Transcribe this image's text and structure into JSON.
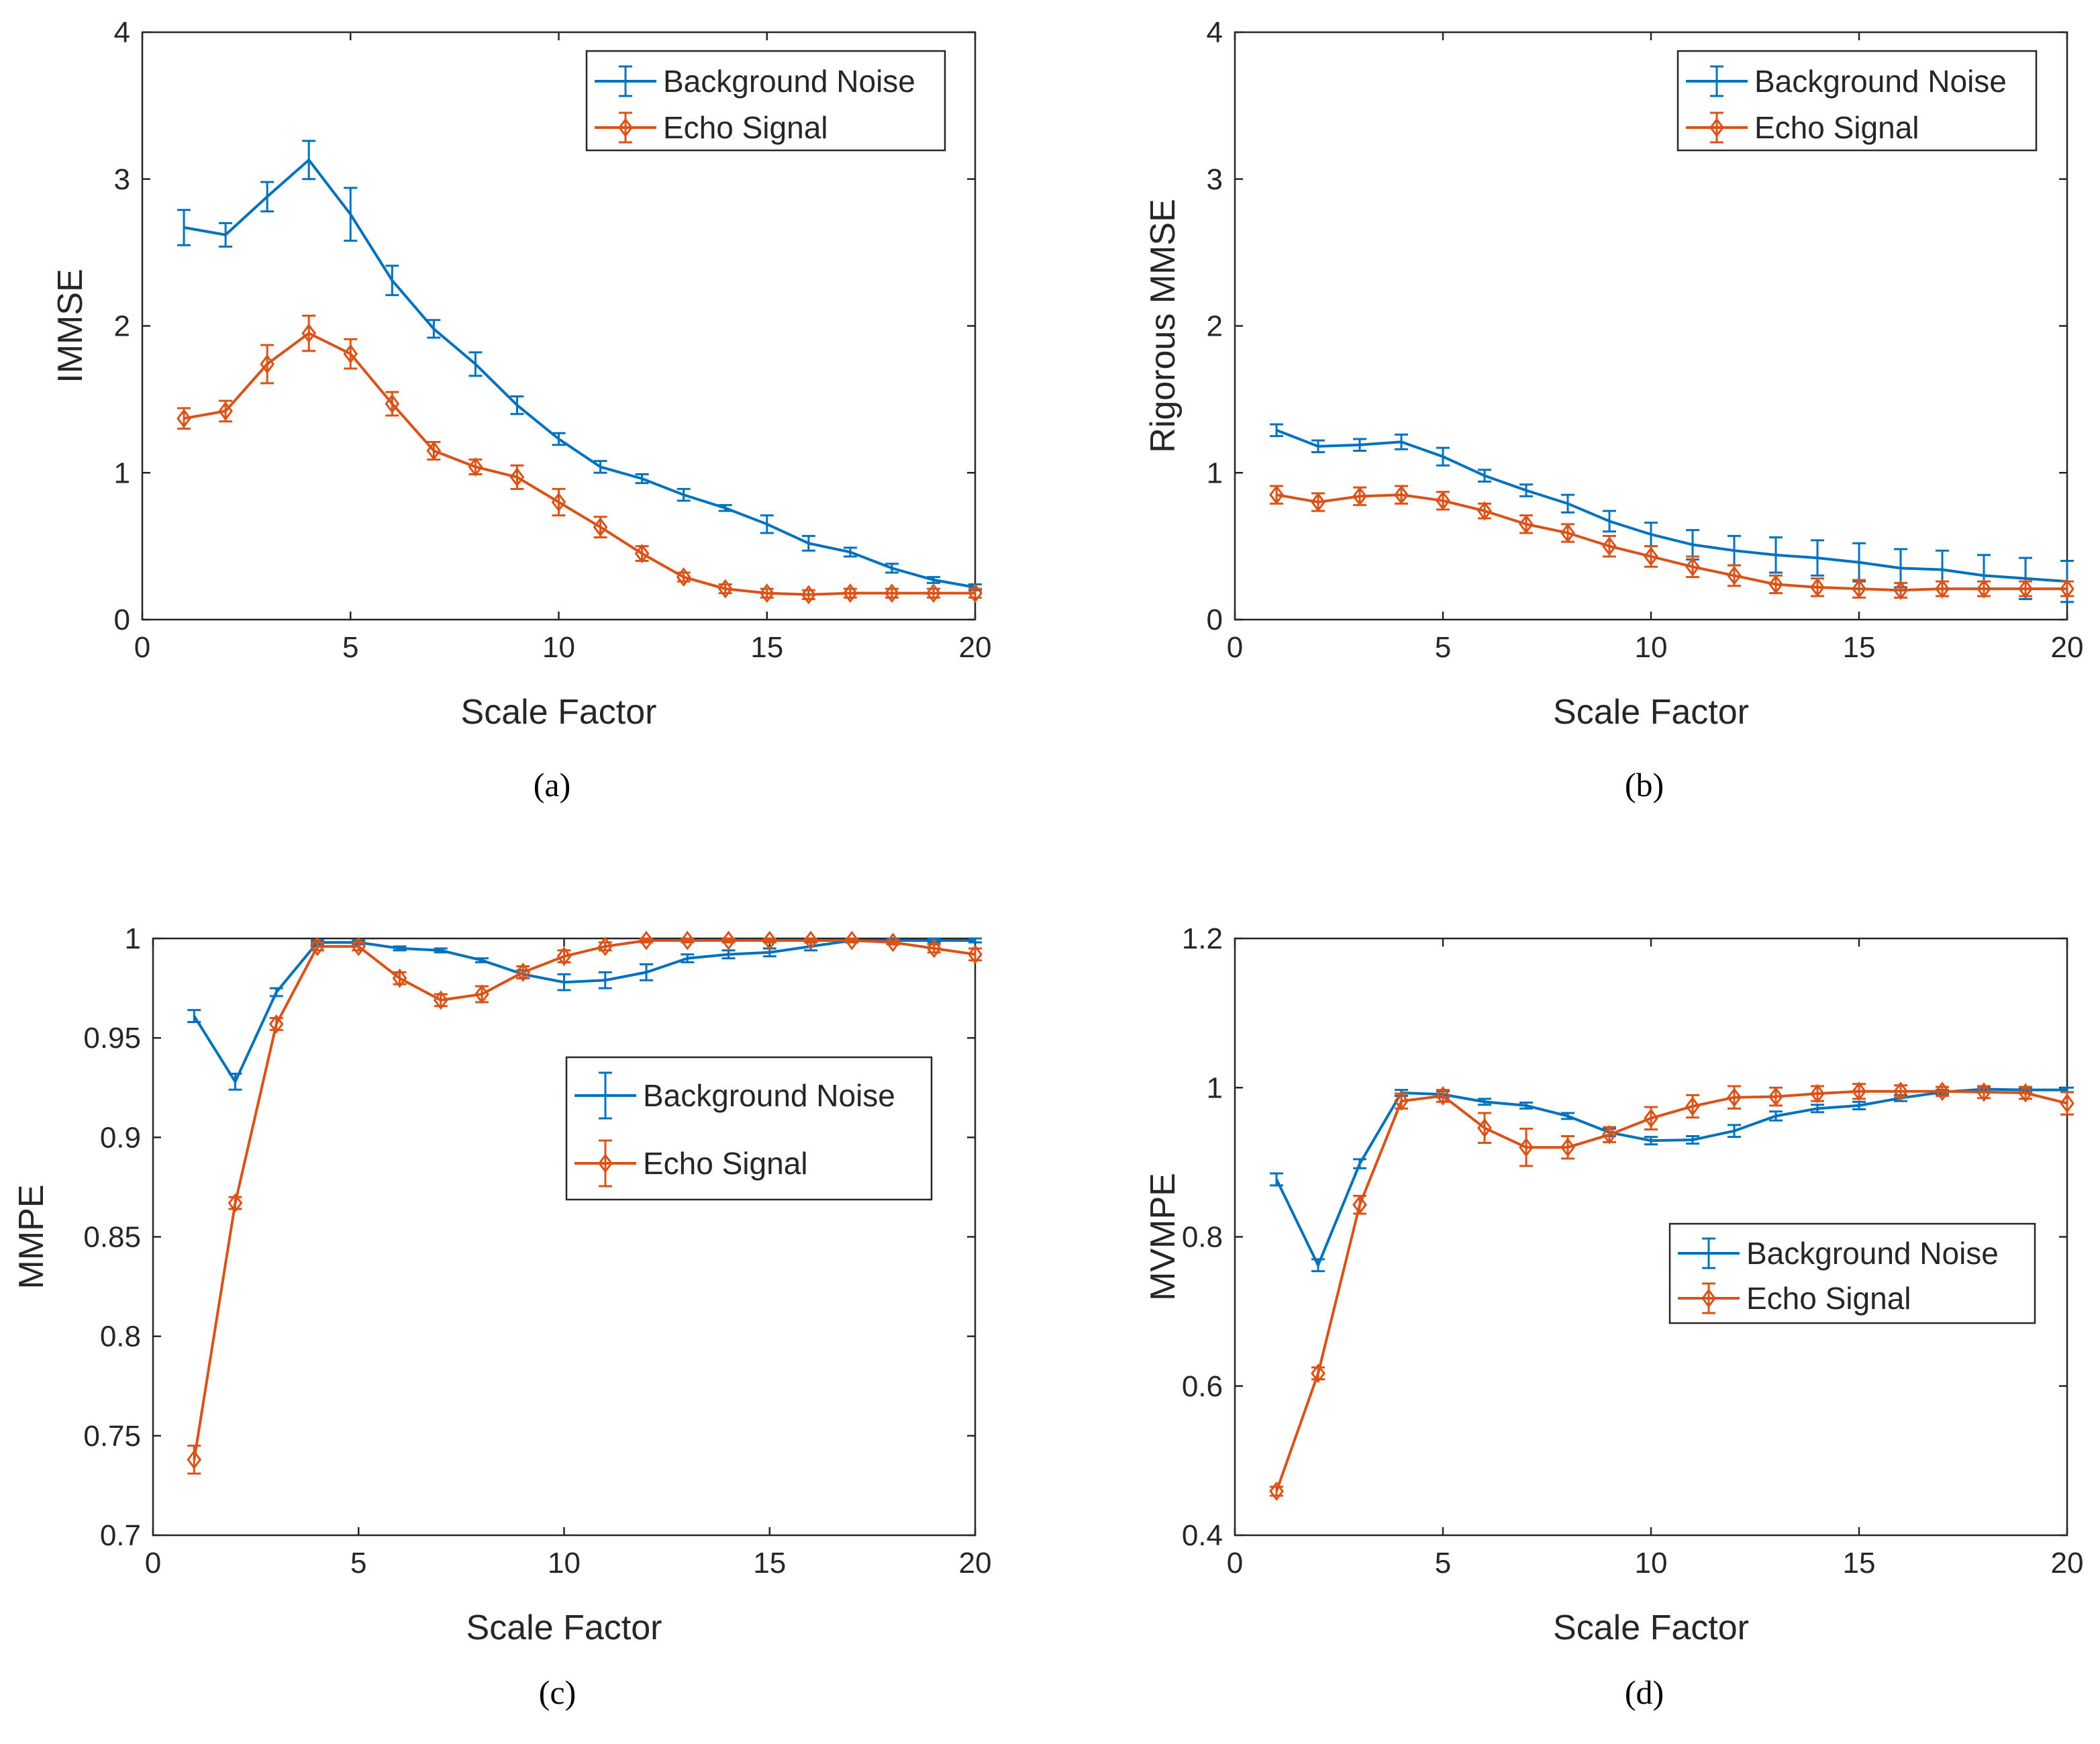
{
  "colors": {
    "noise": "#0072BD",
    "echo": "#D95319",
    "axis": "#262626"
  },
  "chart_data": [
    {
      "type": "line",
      "panel": "a",
      "caption": "(a)",
      "xlabel": "Scale Factor",
      "ylabel": "IMMSE",
      "xlim": [
        0,
        20
      ],
      "ylim": [
        0,
        4
      ],
      "xticks": [
        0,
        5,
        10,
        15,
        20
      ],
      "xtick_labels": [
        "0",
        "5",
        "10",
        "15",
        "20"
      ],
      "yticks": [
        0,
        1,
        2,
        3,
        4
      ],
      "ytick_labels": [
        "0",
        "1",
        "2",
        "3",
        "4"
      ],
      "legend_position": "top-right",
      "x": [
        1,
        2,
        3,
        4,
        5,
        6,
        7,
        8,
        9,
        10,
        11,
        12,
        13,
        14,
        15,
        16,
        17,
        18,
        19,
        20
      ],
      "series": [
        {
          "name": "Background Noise",
          "color": "#0072BD",
          "marker": "none",
          "values": [
            2.67,
            2.62,
            2.88,
            3.13,
            2.76,
            2.31,
            1.98,
            1.74,
            1.46,
            1.23,
            1.04,
            0.96,
            0.85,
            0.76,
            0.65,
            0.52,
            0.46,
            0.35,
            0.27,
            0.22
          ],
          "errors": [
            0.12,
            0.08,
            0.1,
            0.13,
            0.18,
            0.1,
            0.06,
            0.08,
            0.06,
            0.04,
            0.04,
            0.03,
            0.04,
            0.02,
            0.06,
            0.05,
            0.03,
            0.03,
            0.02,
            0.02
          ]
        },
        {
          "name": "Echo Signal",
          "color": "#D95319",
          "marker": "diamond",
          "values": [
            1.37,
            1.42,
            1.74,
            1.95,
            1.81,
            1.47,
            1.15,
            1.04,
            0.97,
            0.8,
            0.63,
            0.45,
            0.29,
            0.21,
            0.18,
            0.17,
            0.18,
            0.18,
            0.18,
            0.18
          ],
          "errors": [
            0.07,
            0.07,
            0.13,
            0.12,
            0.1,
            0.08,
            0.06,
            0.05,
            0.08,
            0.09,
            0.07,
            0.05,
            0.03,
            0.03,
            0.03,
            0.03,
            0.03,
            0.03,
            0.03,
            0.03
          ]
        }
      ]
    },
    {
      "type": "line",
      "panel": "b",
      "caption": "(b)",
      "xlabel": "Scale Factor",
      "ylabel": "Rigorous MMSE",
      "xlim": [
        0,
        20
      ],
      "ylim": [
        0,
        4
      ],
      "xticks": [
        0,
        5,
        10,
        15,
        20
      ],
      "xtick_labels": [
        "0",
        "5",
        "10",
        "15",
        "20"
      ],
      "yticks": [
        0,
        1,
        2,
        3,
        4
      ],
      "ytick_labels": [
        "0",
        "1",
        "2",
        "3",
        "4"
      ],
      "legend_position": "top-right",
      "x": [
        1,
        2,
        3,
        4,
        5,
        6,
        7,
        8,
        9,
        10,
        11,
        12,
        13,
        14,
        15,
        16,
        17,
        18,
        19,
        20
      ],
      "series": [
        {
          "name": "Background Noise",
          "color": "#0072BD",
          "marker": "none",
          "values": [
            1.29,
            1.18,
            1.19,
            1.21,
            1.11,
            0.98,
            0.88,
            0.79,
            0.67,
            0.58,
            0.51,
            0.47,
            0.44,
            0.42,
            0.39,
            0.35,
            0.34,
            0.3,
            0.28,
            0.26
          ],
          "errors": [
            0.04,
            0.04,
            0.04,
            0.05,
            0.06,
            0.04,
            0.04,
            0.06,
            0.07,
            0.08,
            0.1,
            0.1,
            0.12,
            0.12,
            0.13,
            0.13,
            0.13,
            0.14,
            0.14,
            0.14
          ]
        },
        {
          "name": "Echo Signal",
          "color": "#D95319",
          "marker": "diamond",
          "values": [
            0.85,
            0.8,
            0.84,
            0.85,
            0.81,
            0.74,
            0.65,
            0.59,
            0.5,
            0.43,
            0.36,
            0.3,
            0.24,
            0.22,
            0.21,
            0.2,
            0.21,
            0.21,
            0.21,
            0.21
          ],
          "errors": [
            0.06,
            0.06,
            0.06,
            0.06,
            0.06,
            0.05,
            0.06,
            0.06,
            0.07,
            0.07,
            0.07,
            0.07,
            0.06,
            0.06,
            0.06,
            0.05,
            0.05,
            0.05,
            0.05,
            0.05
          ]
        }
      ]
    },
    {
      "type": "line",
      "panel": "c",
      "caption": "(c)",
      "xlabel": "Scale Factor",
      "ylabel": "MMPE",
      "xlim": [
        0,
        20
      ],
      "ylim": [
        0.7,
        1
      ],
      "xticks": [
        0,
        5,
        10,
        15,
        20
      ],
      "xtick_labels": [
        "0",
        "5",
        "10",
        "15",
        "20"
      ],
      "yticks": [
        0.7,
        0.75,
        0.8,
        0.85,
        0.9,
        0.95,
        1
      ],
      "ytick_labels": [
        "0.7",
        "0.75",
        "0.8",
        "0.85",
        "0.9",
        "0.95",
        "1"
      ],
      "legend_position": "center-right",
      "x": [
        1,
        2,
        3,
        4,
        5,
        6,
        7,
        8,
        9,
        10,
        11,
        12,
        13,
        14,
        15,
        16,
        17,
        18,
        19,
        20
      ],
      "series": [
        {
          "name": "Background Noise",
          "color": "#0072BD",
          "marker": "none",
          "values": [
            0.961,
            0.928,
            0.973,
            0.998,
            0.998,
            0.995,
            0.994,
            0.989,
            0.982,
            0.978,
            0.979,
            0.983,
            0.99,
            0.992,
            0.993,
            0.996,
            0.999,
            0.999,
            0.999,
            0.999
          ],
          "errors": [
            0.003,
            0.004,
            0.002,
            0.001,
            0.001,
            0.001,
            0.001,
            0.001,
            0.002,
            0.004,
            0.004,
            0.004,
            0.002,
            0.002,
            0.002,
            0.002,
            0.001,
            0.001,
            0.001,
            0.001
          ]
        },
        {
          "name": "Echo Signal",
          "color": "#D95319",
          "marker": "diamond",
          "values": [
            0.738,
            0.867,
            0.957,
            0.996,
            0.996,
            0.98,
            0.969,
            0.972,
            0.983,
            0.991,
            0.996,
            0.999,
            0.999,
            0.999,
            0.999,
            0.999,
            0.999,
            0.998,
            0.995,
            0.992
          ],
          "errors": [
            0.007,
            0.003,
            0.003,
            0.002,
            0.002,
            0.003,
            0.003,
            0.004,
            0.003,
            0.003,
            0.002,
            0.001,
            0.001,
            0.001,
            0.001,
            0.001,
            0.001,
            0.001,
            0.002,
            0.003
          ]
        }
      ]
    },
    {
      "type": "line",
      "panel": "d",
      "caption": "(d)",
      "xlabel": "Scale Factor",
      "ylabel": "MVMPE",
      "xlim": [
        0,
        20
      ],
      "ylim": [
        0.4,
        1.2
      ],
      "xticks": [
        0,
        5,
        10,
        15,
        20
      ],
      "xtick_labels": [
        "0",
        "5",
        "10",
        "15",
        "20"
      ],
      "yticks": [
        0.4,
        0.6,
        0.8,
        1,
        1.2
      ],
      "ytick_labels": [
        "0.4",
        "0.6",
        "0.8",
        "1",
        "1.2"
      ],
      "legend_position": "right",
      "x": [
        1,
        2,
        3,
        4,
        5,
        6,
        7,
        8,
        9,
        10,
        11,
        12,
        13,
        14,
        15,
        16,
        17,
        18,
        19,
        20
      ],
      "series": [
        {
          "name": "Background Noise",
          "color": "#0072BD",
          "marker": "none",
          "values": [
            0.877,
            0.762,
            0.898,
            0.993,
            0.991,
            0.981,
            0.976,
            0.962,
            0.94,
            0.929,
            0.93,
            0.942,
            0.962,
            0.972,
            0.976,
            0.986,
            0.994,
            0.998,
            0.997,
            0.997
          ],
          "errors": [
            0.008,
            0.008,
            0.006,
            0.004,
            0.004,
            0.004,
            0.004,
            0.004,
            0.005,
            0.005,
            0.005,
            0.008,
            0.006,
            0.005,
            0.005,
            0.004,
            0.003,
            0.003,
            0.003,
            0.003
          ]
        },
        {
          "name": "Echo Signal",
          "color": "#D95319",
          "marker": "diamond",
          "values": [
            0.459,
            0.617,
            0.843,
            0.982,
            0.989,
            0.946,
            0.92,
            0.92,
            0.937,
            0.959,
            0.975,
            0.987,
            0.988,
            0.992,
            0.995,
            0.995,
            0.995,
            0.994,
            0.993,
            0.979
          ],
          "errors": [
            0.006,
            0.008,
            0.012,
            0.01,
            0.008,
            0.02,
            0.025,
            0.015,
            0.01,
            0.015,
            0.015,
            0.015,
            0.012,
            0.01,
            0.01,
            0.008,
            0.006,
            0.008,
            0.008,
            0.015
          ]
        }
      ]
    }
  ]
}
